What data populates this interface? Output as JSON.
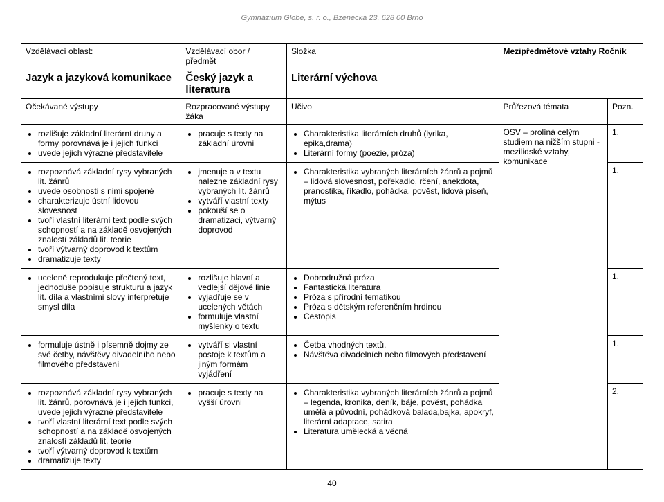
{
  "header_text": "Gymnázium Globe, s. r. o., Bzenecká 23, 628 00 Brno",
  "page_number": "40",
  "top": {
    "r1c1": "Vzdělávací oblast:",
    "r1c2": "Vzdělávací obor / předmět",
    "r1c3": "Složka",
    "r1c4": "Mezipředmětové vztahy Ročník",
    "r2c1": "Jazyk a jazyková komunikace",
    "r2c2": "Český jazyk a literatura",
    "r2c3": "Literární výchova"
  },
  "sub": {
    "c1": "Očekávané výstupy",
    "c2": "Rozpracované výstupy žáka",
    "c3": "Učivo",
    "c4": "Průřezová témata",
    "c5": "Pozn."
  },
  "rows": [
    {
      "c1": [
        "rozlišuje základní literární druhy a formy porovnává je i jejich funkci",
        "uvede jejich výrazné představitele"
      ],
      "c2": [
        "pracuje s texty na základní úrovni"
      ],
      "c3": [
        "Charakteristika literárních druhů (lyrika, epika,drama)",
        "Literární formy (poezie, próza)"
      ],
      "c4": "OSV – prolíná celým studiem na nižším stupni - mezilidské vztahy, komunikace",
      "c5": "1."
    },
    {
      "c1": [
        "rozpoznává základní rysy vybraných lit. žánrů",
        "uvede osobnosti s nimi spojené",
        "charakterizuje ústní lidovou slovesnost",
        "tvoří vlastní literární text podle svých schopností a na základě osvojených znalostí základů lit. teorie",
        "tvoří výtvarný doprovod k textům",
        "dramatizuje texty"
      ],
      "c2": [
        "jmenuje a v textu nalezne základní rysy vybraných lit. žánrů",
        "vytváří vlastní texty",
        "pokouší se o dramatizaci, výtvarný doprovod"
      ],
      "c3": [
        "Charakteristika vybraných literárních žánrů a pojmů – lidová slovesnost, pořekadlo, rčení, anekdota, pranostika, říkadlo, pohádka, pověst, lidová píseň, mýtus"
      ],
      "c4": "",
      "c5": "1."
    },
    {
      "c1": [
        "uceleně reprodukuje přečtený text, jednoduše popisuje strukturu a jazyk lit. díla a vlastními slovy interpretuje smysl díla"
      ],
      "c2": [
        "rozlišuje hlavní a vedlejší dějové linie",
        "vyjadřuje se v ucelených větách",
        "formuluje vlastní myšlenky o textu"
      ],
      "c3": [
        "Dobrodružná próza",
        "Fantastická literatura",
        "Próza s přírodní tematikou",
        "Próza s dětským referenčním hrdinou",
        "Cestopis"
      ],
      "c4": "",
      "c5": "1."
    },
    {
      "c1": [
        "formuluje ústně i písemně dojmy ze své četby, návštěvy  divadelního nebo filmového představení"
      ],
      "c2": [
        "vytváří si vlastní postoje k textům a jiným formám vyjádření"
      ],
      "c3": [
        "Četba vhodných textů,",
        "Návštěva divadelních nebo filmových představení"
      ],
      "c4": "",
      "c5": "1."
    },
    {
      "c1": [
        "rozpoznává základní rysy vybraných lit. žánrů, porovnává je i jejich funkci, uvede jejich výrazné představitele",
        "tvoří vlastní literární text podle svých schopností a na základě osvojených znalostí základů lit. teorie",
        "tvoří výtvarný doprovod k textům",
        "dramatizuje texty"
      ],
      "c2": [
        "pracuje s texty na vyšší úrovni"
      ],
      "c3": [
        "Charakteristika vybraných literárních žánrů a pojmů – legenda, kronika, deník, báje, pověst, pohádka umělá a původní, pohádková balada,bajka, apokryf, literární adaptace, satira",
        "Literatura umělecká a věcná"
      ],
      "c4": "",
      "c5": "2."
    }
  ]
}
